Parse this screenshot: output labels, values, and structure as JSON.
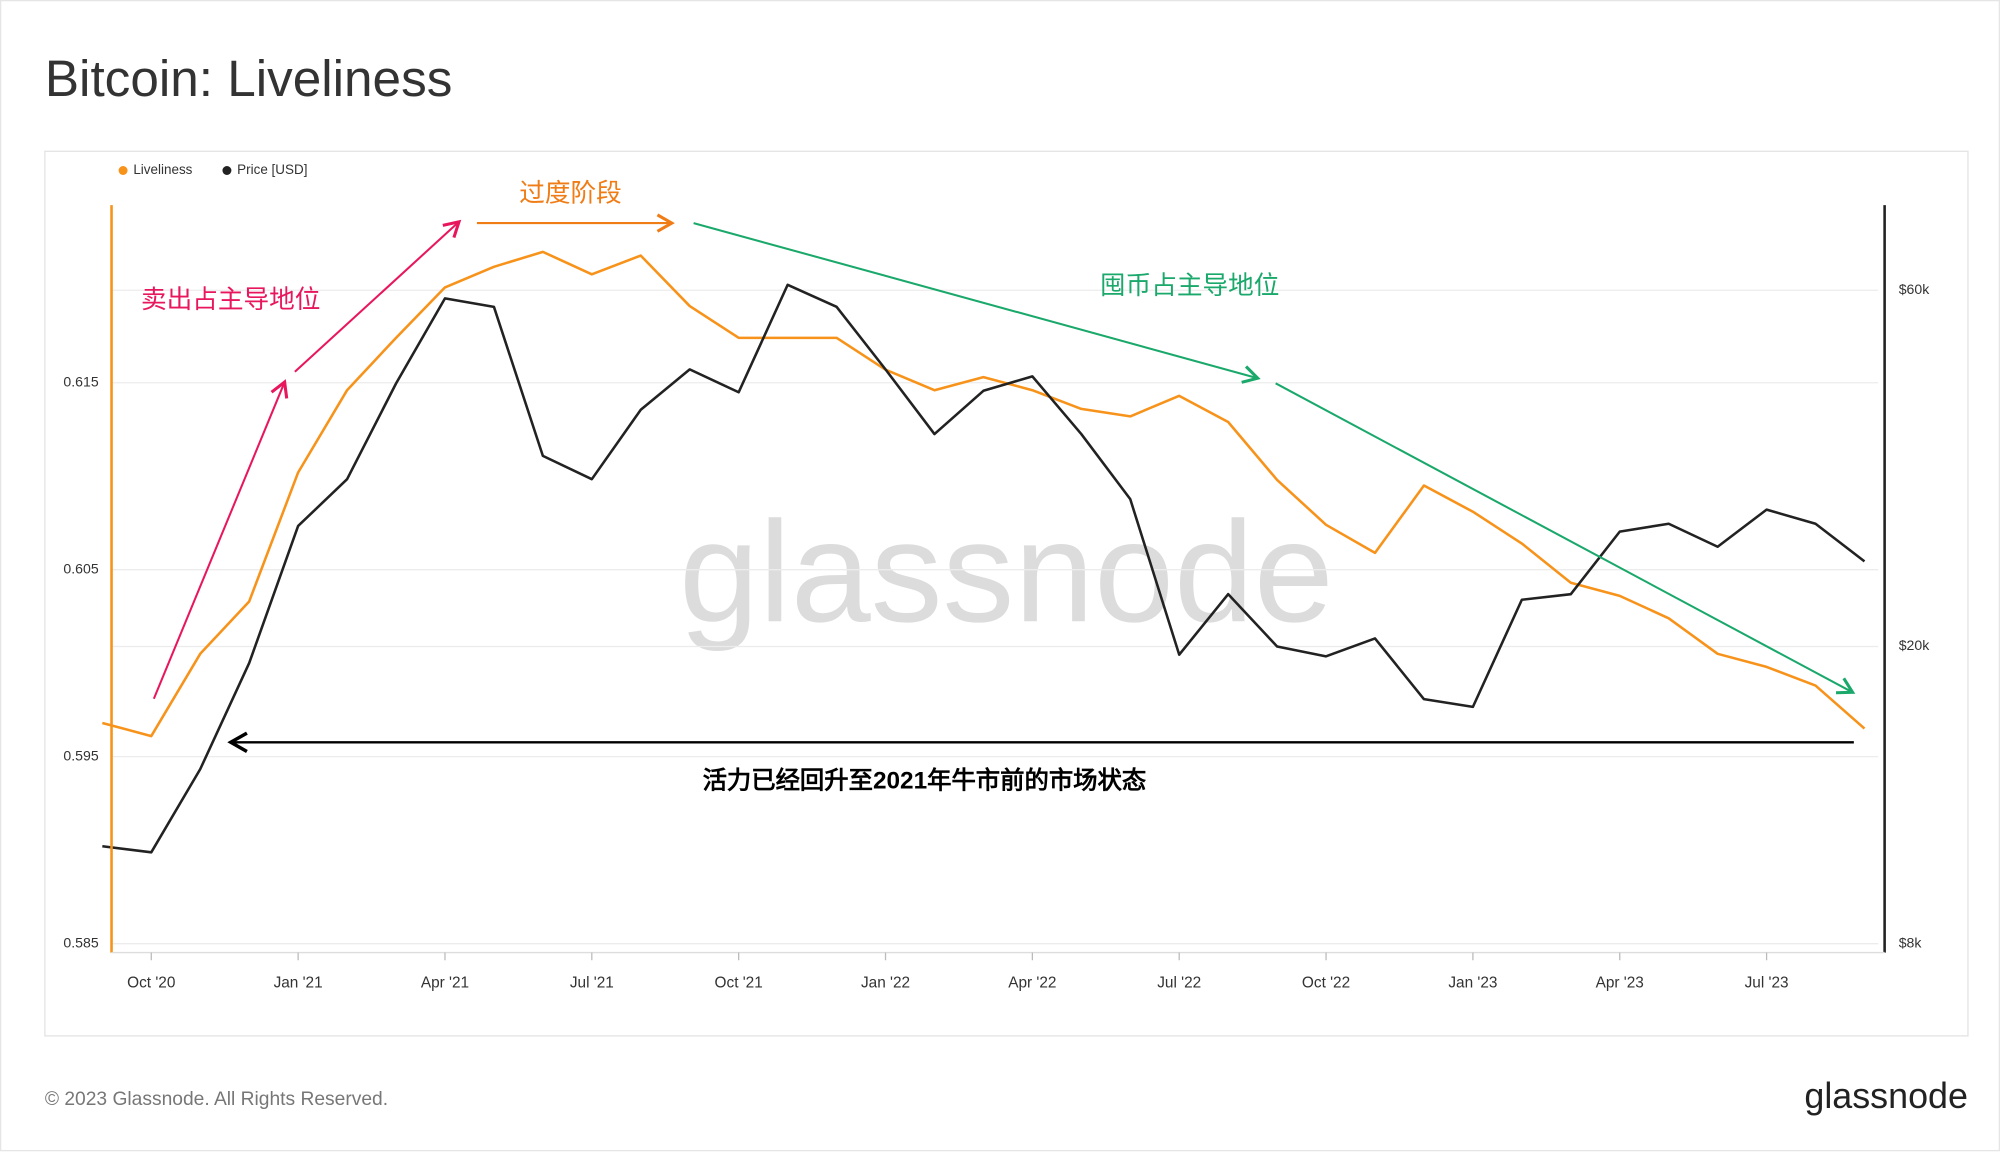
{
  "chart_data": {
    "type": "line",
    "title": "Bitcoin: Liveliness",
    "x": [
      "2020-09",
      "2020-10",
      "2020-11",
      "2020-12",
      "2021-01",
      "2021-02",
      "2021-03",
      "2021-04",
      "2021-05",
      "2021-06",
      "2021-07",
      "2021-08",
      "2021-09",
      "2021-10",
      "2021-11",
      "2021-12",
      "2022-01",
      "2022-02",
      "2022-03",
      "2022-04",
      "2022-05",
      "2022-06",
      "2022-07",
      "2022-08",
      "2022-09",
      "2022-10",
      "2022-11",
      "2022-12",
      "2023-01",
      "2023-02",
      "2023-03",
      "2023-04",
      "2023-05",
      "2023-06",
      "2023-07",
      "2023-08",
      "2023-09"
    ],
    "series": [
      {
        "name": "Liveliness",
        "color": "#f7931a",
        "axis": "y",
        "values": [
          0.5968,
          0.5961,
          0.6005,
          0.6033,
          0.6102,
          0.6146,
          0.6174,
          0.6201,
          0.6212,
          0.622,
          0.6208,
          0.6218,
          0.6191,
          0.6174,
          0.6174,
          0.6174,
          0.6157,
          0.6146,
          0.6153,
          0.6146,
          0.6136,
          0.6132,
          0.6143,
          0.6129,
          0.6098,
          0.6074,
          0.6059,
          0.6095,
          0.6081,
          0.6064,
          0.6043,
          0.6036,
          0.6024,
          0.6005,
          0.5998,
          0.5988,
          0.5965
        ]
      },
      {
        "name": "Price [USD]",
        "color": "#222222",
        "axis": "y2",
        "values": [
          10800,
          10600,
          13700,
          19000,
          29000,
          33500,
          45000,
          58500,
          57000,
          36000,
          33500,
          41500,
          47000,
          43800,
          61000,
          57000,
          47000,
          38500,
          44000,
          46000,
          38500,
          31500,
          19500,
          23500,
          20000,
          19400,
          20500,
          17000,
          16600,
          23100,
          23500,
          28500,
          29200,
          27200,
          30500,
          29200,
          26000
        ]
      }
    ],
    "ylim": [
      0.585,
      0.6245
    ],
    "yticks": [
      0.585,
      0.595,
      0.605,
      0.615
    ],
    "y2lim": [
      8000,
      78000
    ],
    "y2scale": "log",
    "y2ticks": [
      {
        "value": 8000,
        "label": "$8k"
      },
      {
        "value": 20000,
        "label": "$20k"
      },
      {
        "value": 60000,
        "label": "$60k"
      }
    ],
    "xticks": [
      {
        "value": "2020-10",
        "label": "Oct '20"
      },
      {
        "value": "2021-01",
        "label": "Jan '21"
      },
      {
        "value": "2021-04",
        "label": "Apr '21"
      },
      {
        "value": "2021-07",
        "label": "Jul '21"
      },
      {
        "value": "2021-10",
        "label": "Oct '21"
      },
      {
        "value": "2022-01",
        "label": "Jan '22"
      },
      {
        "value": "2022-04",
        "label": "Apr '22"
      },
      {
        "value": "2022-07",
        "label": "Jul '22"
      },
      {
        "value": "2022-10",
        "label": "Oct '22"
      },
      {
        "value": "2023-01",
        "label": "Jan '23"
      },
      {
        "value": "2023-04",
        "label": "Apr '23"
      },
      {
        "value": "2023-07",
        "label": "Jul '23"
      }
    ],
    "grid": true,
    "legend": "top-left",
    "annotations": [
      {
        "text": "卖出占主导地位",
        "color": "#e8175d"
      },
      {
        "text": "过度阶段",
        "color": "#f07c16"
      },
      {
        "text": "囤币占主导地位",
        "color": "#1aa86b"
      },
      {
        "text": "活力已经回升至2021年牛市前的市场状态",
        "color": "#000000"
      }
    ],
    "watermark": "glassnode",
    "copyright": "© 2023 Glassnode. All Rights Reserved.",
    "logo": "glassnode"
  }
}
